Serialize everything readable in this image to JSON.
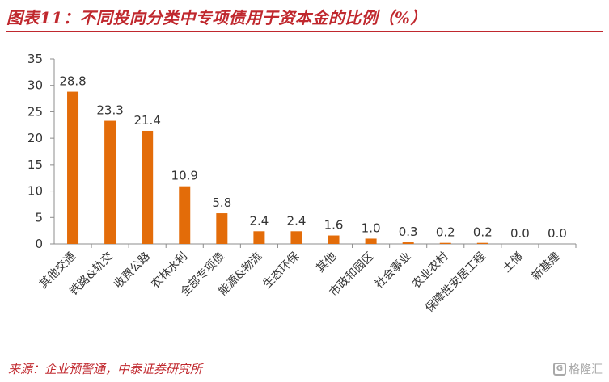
{
  "title": "图表11：不同投向分类中专项债用于资本金的比例（%）",
  "source": "来源：企业预警通，中泰证券研究所",
  "watermark": {
    "icon": "G",
    "text": "格隆汇"
  },
  "colors": {
    "accent": "#c0282e",
    "bar": "#e36c09"
  },
  "chart_data": {
    "type": "bar",
    "title": "",
    "xlabel": "",
    "ylabel": "",
    "ylim": [
      0,
      35
    ],
    "yticks": [
      0,
      5,
      10,
      15,
      20,
      25,
      30,
      35
    ],
    "grid": false,
    "categories": [
      "其他交通",
      "铁路&轨交",
      "收费公路",
      "农林水利",
      "全部专项债",
      "能源&物流",
      "生态环保",
      "其他",
      "市政和园区",
      "社会事业",
      "农业农村",
      "保障性安居工程",
      "土储",
      "新基建"
    ],
    "values": [
      28.8,
      23.3,
      21.4,
      10.9,
      5.8,
      2.4,
      2.4,
      1.6,
      1.0,
      0.3,
      0.2,
      0.2,
      0.0,
      0.0
    ],
    "value_labels": [
      "28.8",
      "23.3",
      "21.4",
      "10.9",
      "5.8",
      "2.4",
      "2.4",
      "1.6",
      "1.0",
      "0.3",
      "0.2",
      "0.2",
      "0.0",
      "0.0"
    ]
  }
}
